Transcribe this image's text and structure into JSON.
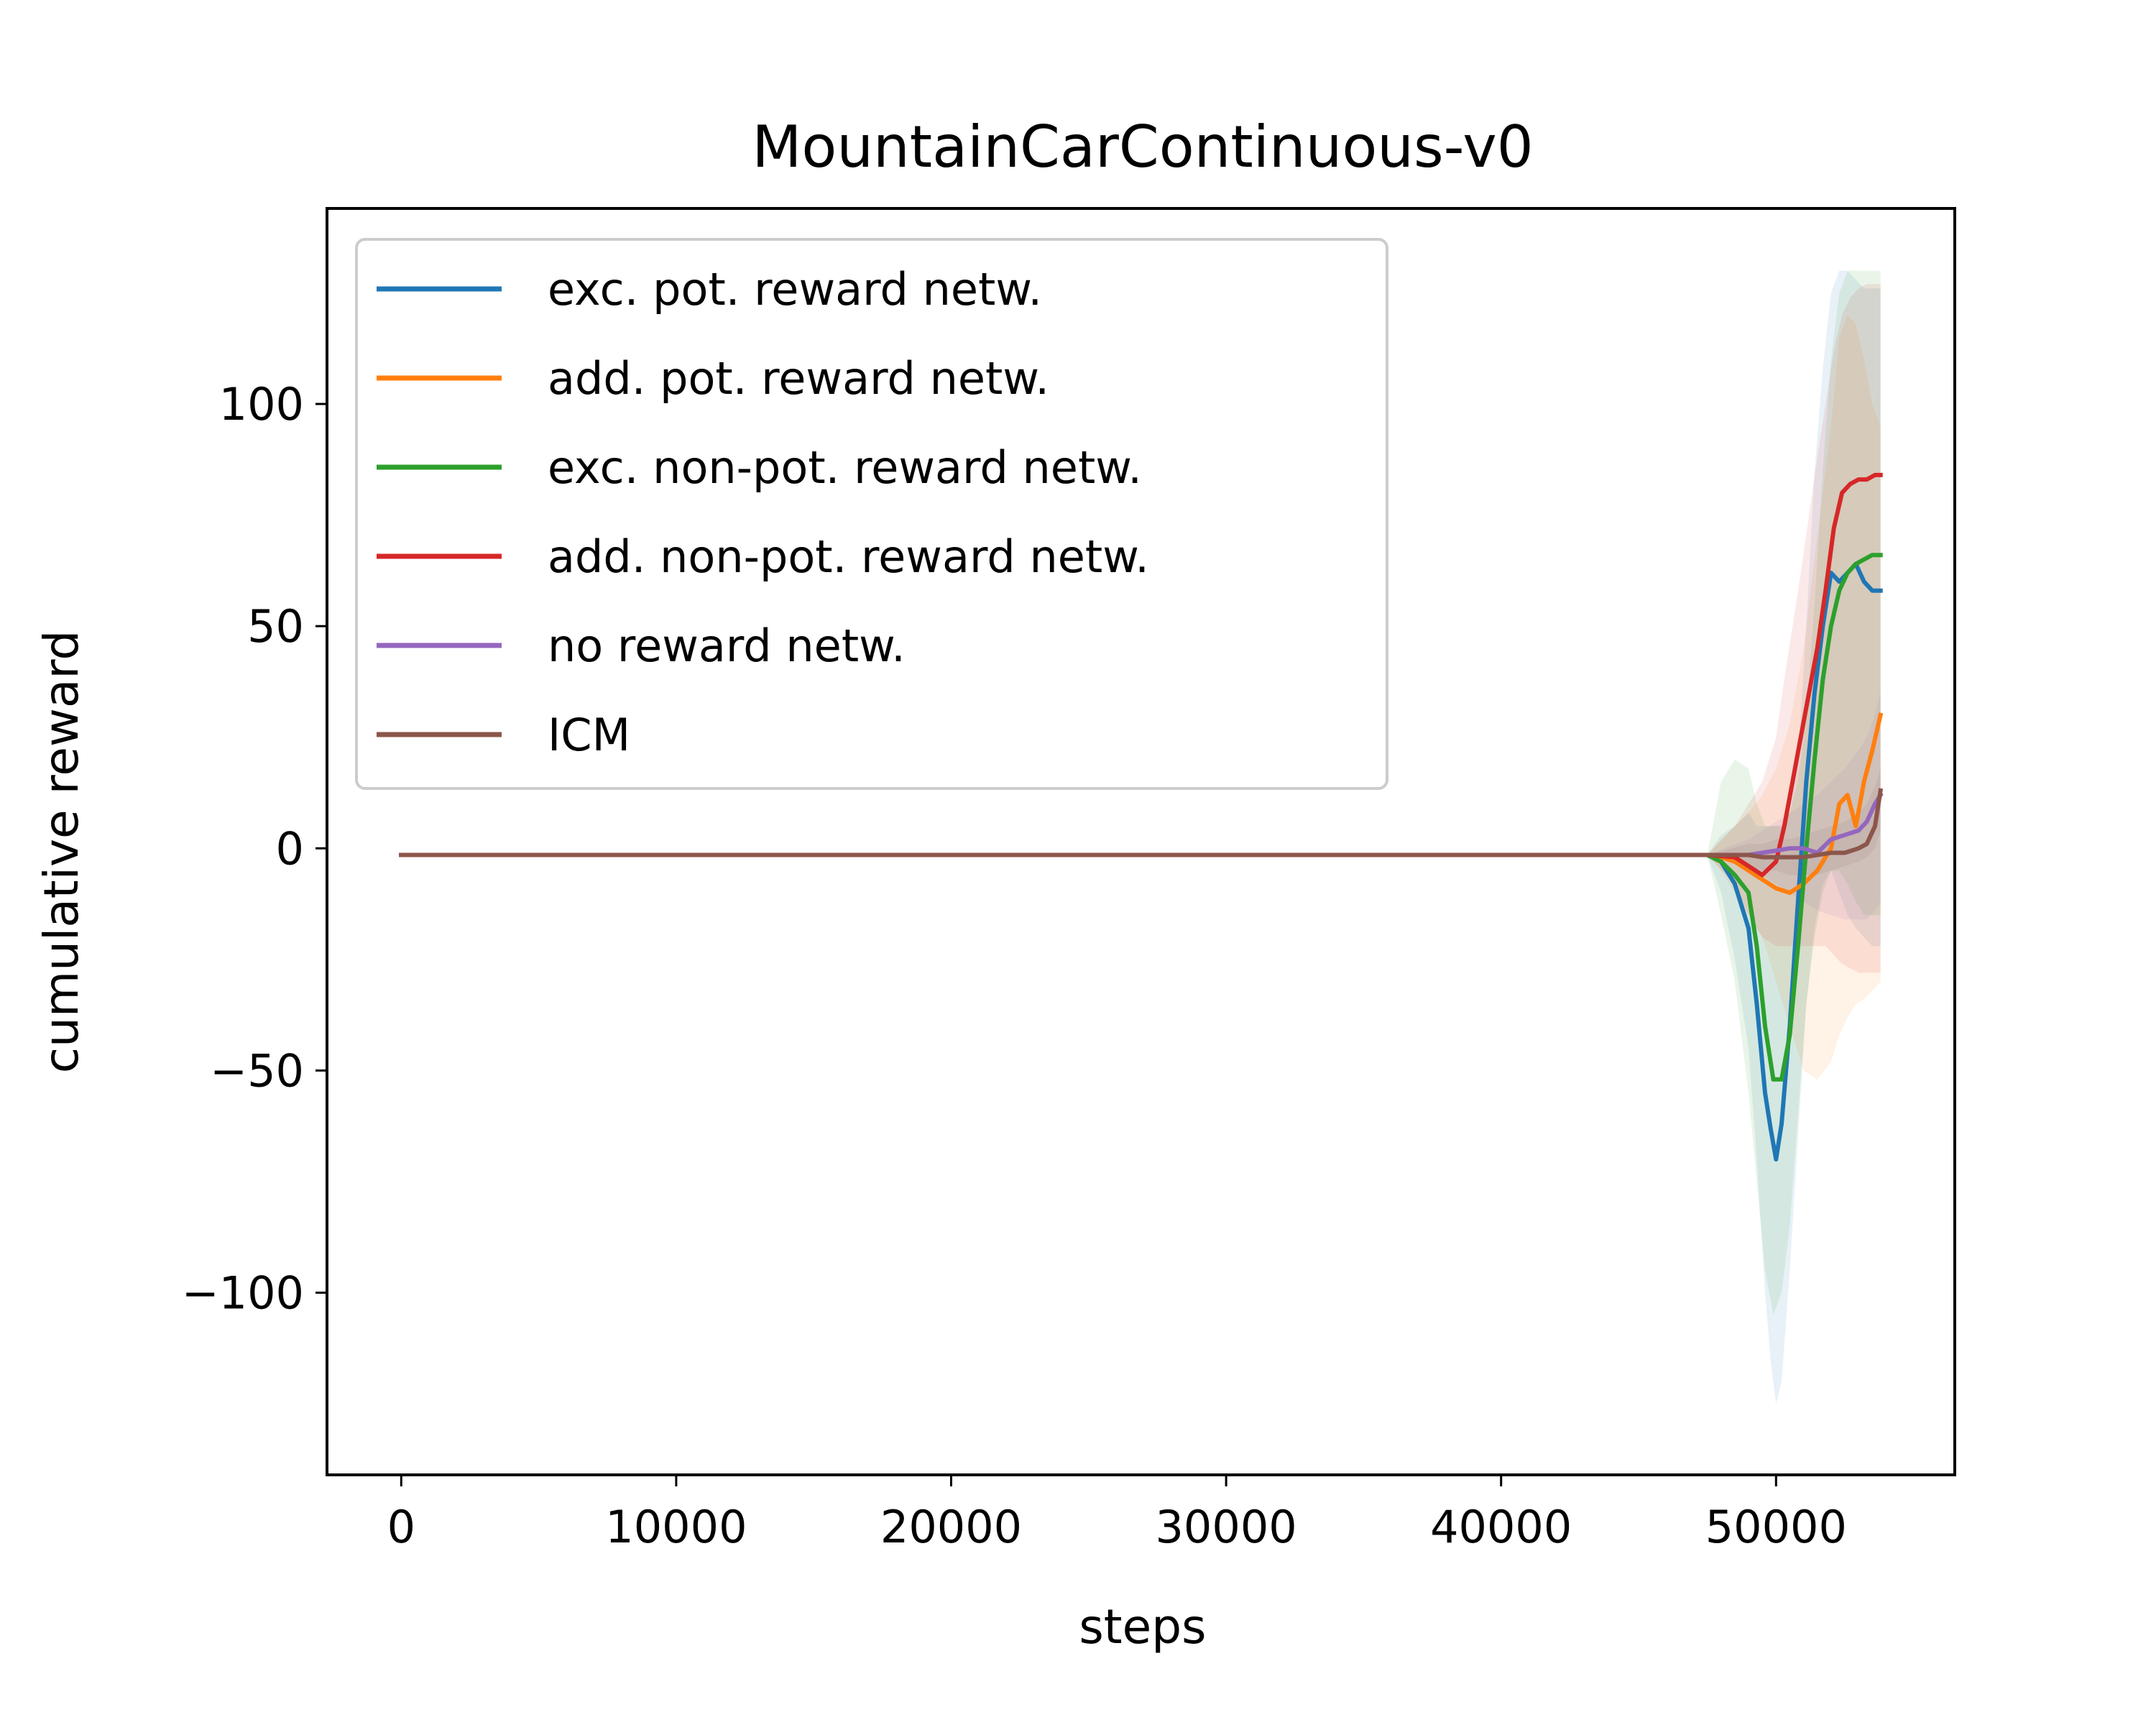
{
  "chart_data": {
    "type": "line",
    "title": "MountainCarContinuous-v0",
    "xlabel": "steps",
    "ylabel": "cumulative reward",
    "xlim": [
      -2700,
      56500
    ],
    "ylim": [
      -141,
      144
    ],
    "xticks": [
      0,
      10000,
      20000,
      30000,
      40000,
      50000
    ],
    "xtick_labels": [
      "0",
      "10000",
      "20000",
      "30000",
      "40000",
      "50000"
    ],
    "yticks": [
      -100,
      -50,
      0,
      50,
      100
    ],
    "ytick_labels": [
      "−100",
      "−50",
      "0",
      "50",
      "100"
    ],
    "grid": false,
    "legend": {
      "position": "top-left"
    },
    "series": [
      {
        "name": "exc. pot. reward netw.",
        "color": "#1f77b4",
        "x": [
          0,
          47500,
          48000,
          48500,
          49000,
          49300,
          49600,
          49800,
          50000,
          50200,
          50500,
          50800,
          51100,
          51400,
          51700,
          52000,
          52300,
          52600,
          52900,
          53200,
          53500,
          53800
        ],
        "y": [
          -1.5,
          -1.5,
          -3,
          -8,
          -18,
          -35,
          -55,
          -63,
          -70,
          -62,
          -40,
          -12,
          15,
          35,
          50,
          62,
          60,
          62,
          64,
          60,
          58,
          58
        ],
        "band_upper": [
          -1.5,
          -1.5,
          3,
          5,
          8,
          5,
          5,
          5,
          5,
          5,
          8,
          20,
          50,
          85,
          108,
          125,
          130,
          130,
          128,
          126,
          126,
          126
        ],
        "band_lower": [
          -1.5,
          -1.5,
          -10,
          -25,
          -45,
          -70,
          -100,
          -115,
          -125,
          -120,
          -95,
          -65,
          -35,
          -18,
          -8,
          -5,
          -10,
          -15,
          -18,
          -20,
          -22,
          -22
        ]
      },
      {
        "name": "add. pot. reward netw.",
        "color": "#ff7f0e",
        "x": [
          0,
          47500,
          48000,
          48500,
          49000,
          49500,
          50000,
          50500,
          51000,
          51500,
          52000,
          52300,
          52600,
          52900,
          53200,
          53500,
          53800
        ],
        "y": [
          -1.5,
          -1.5,
          -2,
          -3,
          -5,
          -7,
          -9,
          -10,
          -8,
          -5,
          0,
          10,
          12,
          5,
          15,
          22,
          30
        ],
        "band_upper": [
          -1.5,
          -1.5,
          2,
          5,
          8,
          12,
          18,
          28,
          45,
          70,
          95,
          115,
          120,
          118,
          110,
          100,
          95
        ],
        "band_lower": [
          -1.5,
          -1.5,
          -5,
          -10,
          -15,
          -20,
          -30,
          -40,
          -50,
          -52,
          -48,
          -42,
          -38,
          -35,
          -34,
          -32,
          -30
        ]
      },
      {
        "name": "exc. non-pot. reward netw.",
        "color": "#2ca02c",
        "x": [
          0,
          47500,
          48000,
          48500,
          49000,
          49300,
          49600,
          49900,
          50200,
          50500,
          50800,
          51100,
          51400,
          51700,
          52000,
          52300,
          52600,
          52900,
          53200,
          53500,
          53800
        ],
        "y": [
          -1.5,
          -1.5,
          -3,
          -6,
          -10,
          -22,
          -40,
          -52,
          -52,
          -42,
          -22,
          0,
          20,
          38,
          50,
          58,
          62,
          64,
          65,
          66,
          66
        ],
        "band_upper": [
          -1.5,
          -1.5,
          15,
          20,
          18,
          10,
          5,
          5,
          5,
          8,
          15,
          30,
          55,
          85,
          110,
          125,
          130,
          130,
          130,
          130,
          130
        ],
        "band_lower": [
          -1.5,
          -1.5,
          -15,
          -30,
          -55,
          -75,
          -95,
          -105,
          -100,
          -85,
          -60,
          -35,
          -20,
          -10,
          -5,
          -5,
          -8,
          -12,
          -15,
          -15,
          -15
        ]
      },
      {
        "name": "add. non-pot. reward netw.",
        "color": "#d62728",
        "x": [
          0,
          47500,
          48500,
          49000,
          49500,
          50000,
          50300,
          50600,
          50900,
          51200,
          51500,
          51800,
          52100,
          52400,
          52700,
          53000,
          53300,
          53600,
          53800
        ],
        "y": [
          -1.5,
          -1.5,
          -2,
          -4,
          -6,
          -3,
          5,
          15,
          25,
          35,
          45,
          58,
          72,
          80,
          82,
          83,
          83,
          84,
          84
        ],
        "band_upper": [
          -1.5,
          -1.5,
          5,
          10,
          15,
          25,
          38,
          50,
          62,
          75,
          88,
          100,
          112,
          120,
          124,
          126,
          127,
          127,
          127
        ],
        "band_lower": [
          -1.5,
          -1.5,
          -8,
          -15,
          -20,
          -22,
          -22,
          -22,
          -22,
          -22,
          -22,
          -22,
          -24,
          -26,
          -27,
          -28,
          -28,
          -28,
          -28
        ]
      },
      {
        "name": "no reward netw.",
        "color": "#9467bd",
        "x": [
          0,
          47500,
          49000,
          49500,
          50000,
          50500,
          51000,
          51500,
          52000,
          52500,
          53000,
          53300,
          53600,
          53800
        ],
        "y": [
          -1.5,
          -1.5,
          -1.5,
          -1,
          -0.5,
          0,
          0,
          -1,
          2,
          3,
          4,
          6,
          10,
          12
        ],
        "band_upper": [
          -1.5,
          -1.5,
          2,
          4,
          6,
          8,
          10,
          12,
          15,
          18,
          22,
          25,
          30,
          35
        ],
        "band_lower": [
          -1.5,
          -1.5,
          -4,
          -6,
          -8,
          -10,
          -12,
          -14,
          -15,
          -16,
          -16,
          -16,
          -14,
          -12
        ]
      },
      {
        "name": "ICM",
        "color": "#8c564b",
        "x": [
          0,
          47500,
          49000,
          49500,
          50000,
          50500,
          51000,
          51500,
          52000,
          52500,
          53000,
          53300,
          53600,
          53800
        ],
        "y": [
          -1.5,
          -1.5,
          -1.5,
          -2,
          -2,
          -2,
          -2,
          -1.5,
          -1,
          -1,
          0,
          1,
          5,
          13
        ],
        "band_upper": [
          -1.5,
          -1.5,
          1,
          1,
          2,
          2,
          3,
          4,
          5,
          6,
          8,
          10,
          14,
          18
        ],
        "band_lower": [
          -1.5,
          -1.5,
          -4,
          -5,
          -5,
          -6,
          -6,
          -6,
          -5,
          -4,
          -3,
          -2,
          0,
          4
        ]
      }
    ]
  }
}
